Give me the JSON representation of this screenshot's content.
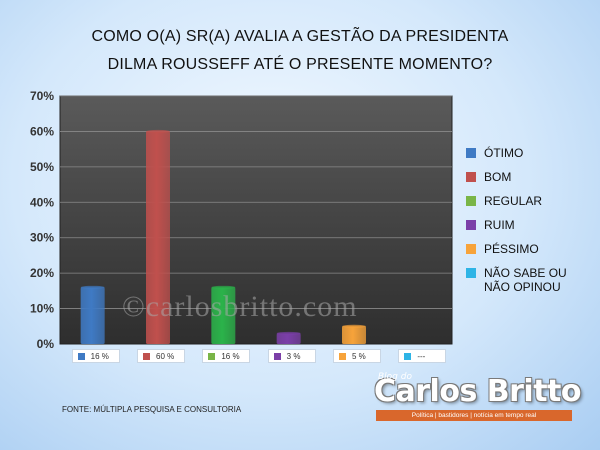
{
  "chart_data": {
    "type": "bar",
    "title_line1": "COMO O(A) SR(A) AVALIA A GESTÃO DA PRESIDENTA",
    "title_line2": "DILMA ROUSSEFF ATÉ O PRESENTE MOMENTO?",
    "categories": [
      "ÓTIMO",
      "BOM",
      "REGULAR",
      "RUIM",
      "PÉSSIMO",
      "NÃO SABE OU NÃO OPINOU"
    ],
    "values": [
      16,
      60,
      16,
      3,
      5,
      null
    ],
    "value_labels": [
      "16 %",
      "60 %",
      "16 %",
      "3 %",
      "5 %",
      "---"
    ],
    "colors": [
      "#3f7ac4",
      "#c0504d",
      "#2bb34a",
      "#7b3fa8",
      "#f7a33a",
      "#2eb4e6"
    ],
    "legend_colors": [
      "#3f7ac4",
      "#c0504d",
      "#79b547",
      "#7b3fa8",
      "#f7a33a",
      "#2eb4e6"
    ],
    "ylim": [
      0,
      70
    ],
    "yticks": [
      "0%",
      "10%",
      "20%",
      "30%",
      "40%",
      "50%",
      "60%",
      "70%"
    ],
    "grid": true,
    "legend_position": "right"
  },
  "legend": [
    "ÓTIMO",
    "BOM",
    "REGULAR",
    "RUIM",
    "PÉSSIMO",
    "NÃO SABE OU NÃO OPINOU"
  ],
  "watermark": "©carlosbritto.com",
  "source": "FONTE: MÚLTIPLA PESQUISA E CONSULTORIA",
  "logo": {
    "tag": "Blog do",
    "name": "Carlos Britto",
    "tagline": "Política | bastidores | notícia em tempo real"
  }
}
